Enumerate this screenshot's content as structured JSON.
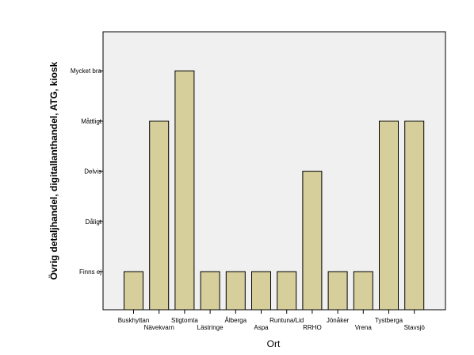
{
  "chart_data": {
    "type": "bar",
    "title": "",
    "xlabel": "Ort",
    "ylabel": "Övrig detaljhandel, digitallanthandel, ATG, kiosk",
    "y_categories": [
      "Finns ej",
      "Dåligt",
      "Delvis",
      "Måttligt",
      "Mycket bra"
    ],
    "categories": [
      "Buskhyttan",
      "Nävekvarn",
      "Stigtomta",
      "Lästringe",
      "Ålberga",
      "Aspa",
      "Runtuna/Lid",
      "RRHO",
      "Jönåker",
      "Vrena",
      "Tystberga",
      "Stavsjö"
    ],
    "values": [
      "Finns ej",
      "Måttligt",
      "Mycket bra",
      "Finns ej",
      "Finns ej",
      "Finns ej",
      "Finns ej",
      "Delvis",
      "Finns ej",
      "Finns ej",
      "Måttligt",
      "Måttligt"
    ],
    "bar_color": "#d6cf9c",
    "grid": false,
    "legend": "none"
  }
}
